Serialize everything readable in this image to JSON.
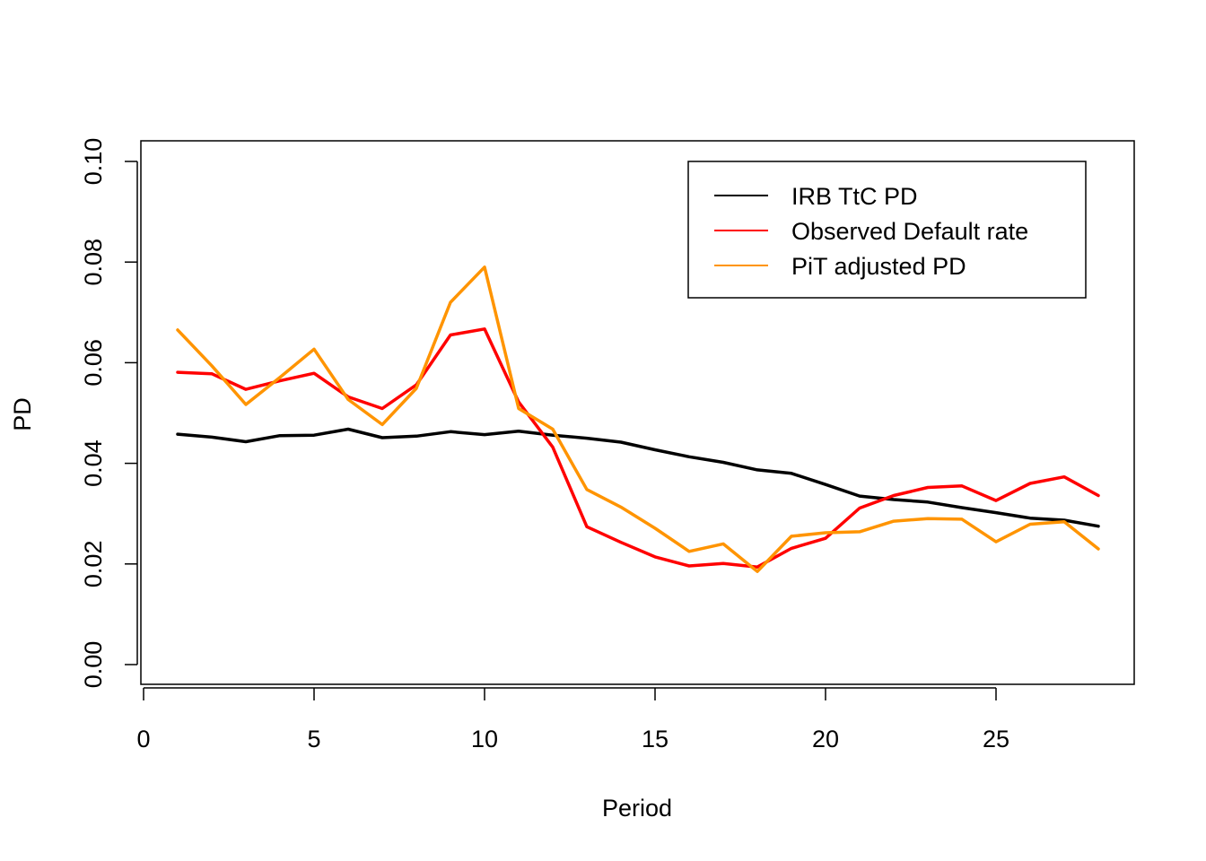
{
  "chart_data": {
    "type": "line",
    "title": "",
    "xlabel": "Period",
    "ylabel": "PD",
    "xlim": [
      0,
      29
    ],
    "ylim": [
      0,
      0.1
    ],
    "xticks": [
      0,
      5,
      10,
      15,
      20,
      25
    ],
    "xtick_labels": [
      "0",
      "5",
      "10",
      "15",
      "20",
      "25"
    ],
    "yticks": [
      0,
      0.02,
      0.04,
      0.06,
      0.08,
      0.1
    ],
    "ytick_labels": [
      "0.00",
      "0.02",
      "0.04",
      "0.06",
      "0.08",
      "0.10"
    ],
    "grid": false,
    "legend_position": "top-right",
    "x": [
      1,
      2,
      3,
      4,
      5,
      6,
      7,
      8,
      9,
      10,
      11,
      12,
      13,
      14,
      15,
      16,
      17,
      18,
      19,
      20,
      21,
      22,
      23,
      24,
      25,
      26,
      27,
      28
    ],
    "series": [
      {
        "name": "IRB TtC PD",
        "color": "#000000",
        "values": [
          0.0458,
          0.0452,
          0.0443,
          0.0455,
          0.0456,
          0.0468,
          0.0451,
          0.0454,
          0.0463,
          0.0457,
          0.0464,
          0.0456,
          0.045,
          0.0442,
          0.0427,
          0.0413,
          0.0402,
          0.0387,
          0.038,
          0.0358,
          0.0335,
          0.0328,
          0.0323,
          0.0312,
          0.0302,
          0.0291,
          0.0287,
          0.0275
        ]
      },
      {
        "name": "Observed Default rate",
        "color": "#ff0000",
        "values": [
          0.0581,
          0.0578,
          0.0547,
          0.0564,
          0.0579,
          0.0532,
          0.0509,
          0.0556,
          0.0655,
          0.0667,
          0.0522,
          0.0432,
          0.0274,
          0.0243,
          0.0214,
          0.0196,
          0.0201,
          0.0194,
          0.0231,
          0.0251,
          0.0311,
          0.0336,
          0.0352,
          0.0355,
          0.0326,
          0.036,
          0.0373,
          0.0336
        ]
      },
      {
        "name": "PiT adjusted PD",
        "color": "#ff9400",
        "values": [
          0.0665,
          0.0594,
          0.0517,
          0.0571,
          0.0627,
          0.0527,
          0.0477,
          0.0549,
          0.072,
          0.079,
          0.0509,
          0.0468,
          0.0348,
          0.0313,
          0.0271,
          0.0225,
          0.024,
          0.0185,
          0.0255,
          0.0262,
          0.0264,
          0.0285,
          0.029,
          0.0289,
          0.0244,
          0.0279,
          0.0284,
          0.023
        ]
      }
    ]
  }
}
